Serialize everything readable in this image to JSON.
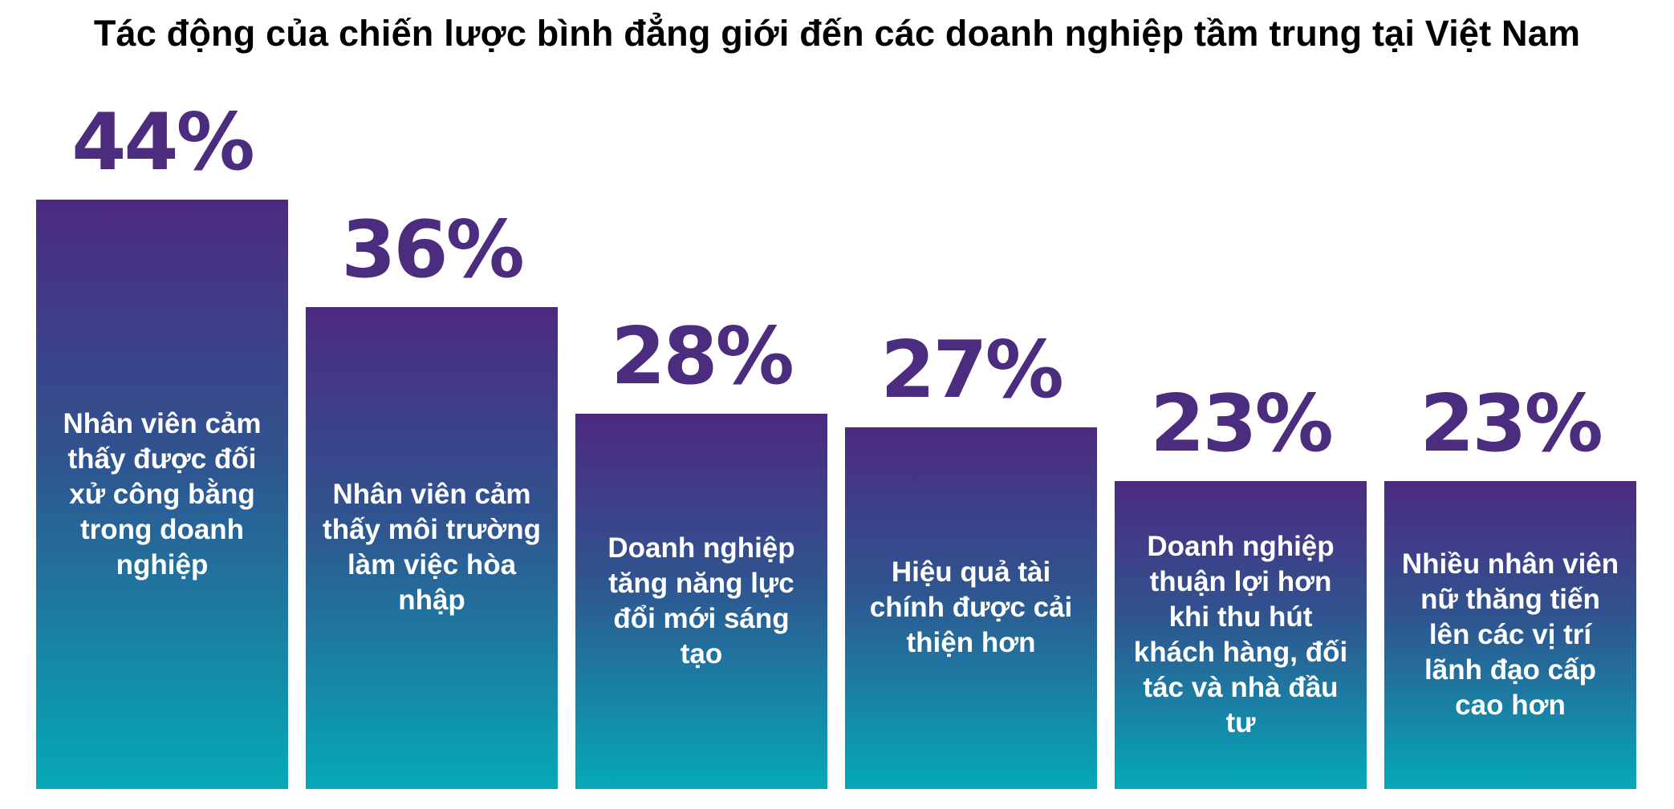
{
  "chart_data": {
    "type": "bar",
    "title": "Tác động của chiến lược bình đẳng giới đến các doanh nghiệp tầm trung tại Việt Nam",
    "categories": [
      "Nhân viên cảm thấy được đối xử công bằng trong doanh nghiệp",
      "Nhân viên cảm thấy môi trường làm việc hòa nhập",
      "Doanh nghiệp tăng năng lực đổi mới sáng tạo",
      "Hiệu quả tài chính được cải thiện hơn",
      "Doanh nghiệp thuận lợi hơn khi thu hút khách hàng, đối tác và nhà đầu tư",
      "Nhiều nhân viên nữ thăng tiến lên các vị trí lãnh đạo cấp cao hơn"
    ],
    "values": [
      44,
      36,
      28,
      27,
      23,
      23
    ],
    "value_labels": [
      "44%",
      "36%",
      "28%",
      "27%",
      "23%",
      "23%"
    ],
    "ylim": [
      0,
      44
    ],
    "grid": false,
    "legend": "none",
    "colors": {
      "bar_top": "#4c2a80",
      "bar_middle": "#2f5590",
      "bar_bottom": "#05a9b8",
      "value_text": "#4b2c7f",
      "bar_text": "#ffffff"
    }
  }
}
